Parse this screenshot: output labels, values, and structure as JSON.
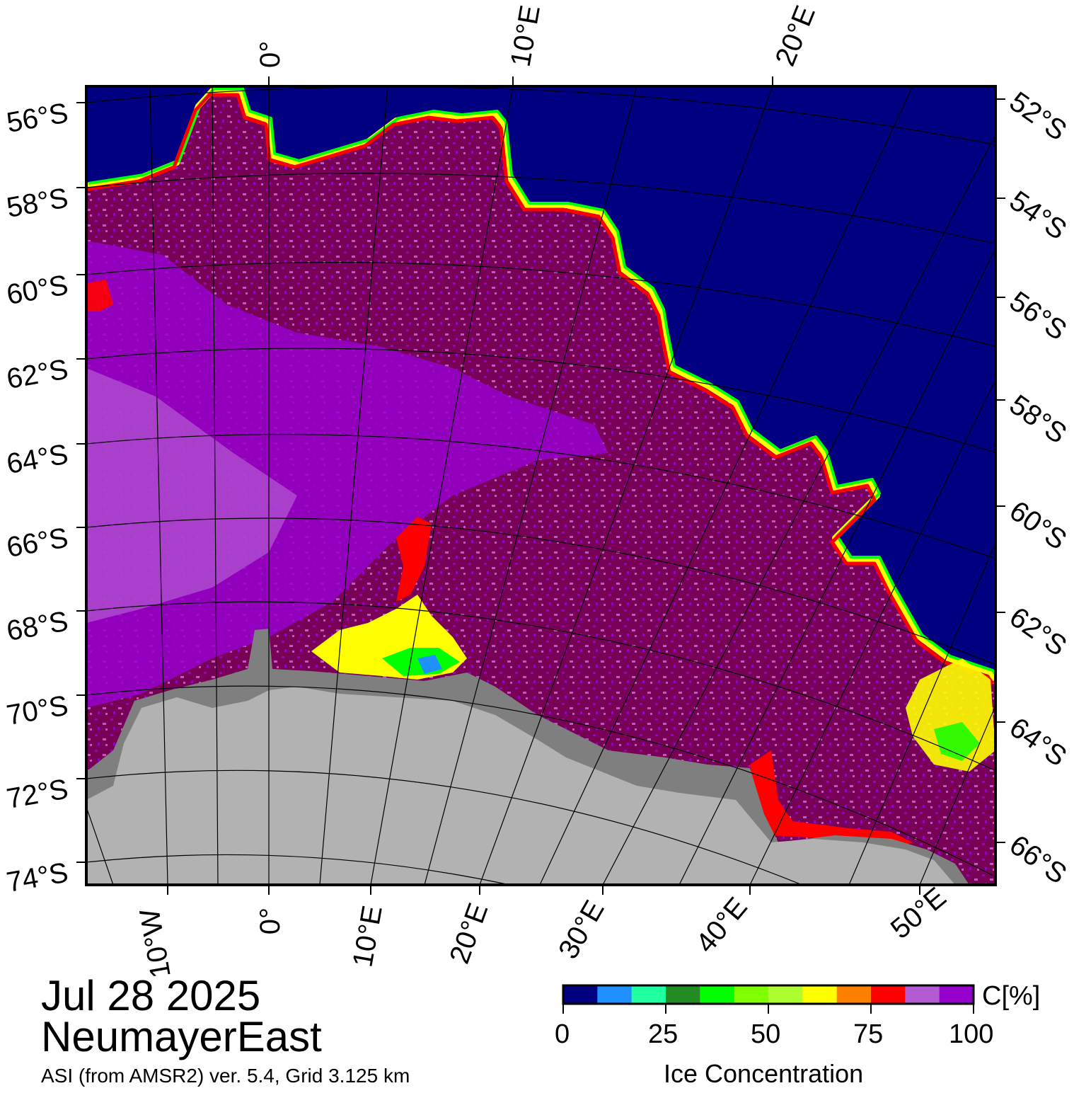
{
  "map": {
    "latitude_labels_left": [
      "56°S",
      "58°S",
      "60°S",
      "62°S",
      "64°S",
      "66°S",
      "68°S",
      "70°S",
      "72°S",
      "74°S"
    ],
    "latitude_labels_right": [
      "52°S",
      "54°S",
      "56°S",
      "58°S",
      "60°S",
      "62°S",
      "64°S",
      "66°S"
    ],
    "longitude_labels_top": [
      "0°",
      "10°E",
      "20°E"
    ],
    "longitude_labels_bottom": [
      "10°W",
      "0°",
      "10°E",
      "20°E",
      "30°E",
      "40°E",
      "50°E"
    ],
    "colors": {
      "open_water": "#000080",
      "land": "#b2b2b2",
      "ice_shelf": "#7f7f7f",
      "ice_100": "#780057",
      "ice_95": "#9600cd",
      "ice_90": "#b45ad2",
      "ice_85": "#ff0000",
      "ice_75": "#ffff00",
      "ice_50": "#00ff00"
    }
  },
  "title": {
    "date": "Jul 28 2025",
    "region": "NeumayerEast",
    "product": "ASI (from AMSR2) ver. 5.4,  Grid 3.125 km"
  },
  "colorbar": {
    "unit_label": "C[%]",
    "title": "Ice Concentration",
    "ticks": [
      "0",
      "25",
      "50",
      "75",
      "100"
    ],
    "colors": [
      "#000080",
      "#1e90ff",
      "#1effa0",
      "#228b22",
      "#00ff00",
      "#7fff00",
      "#adff2f",
      "#ffff00",
      "#ff7f00",
      "#ff0000",
      "#b45ad2",
      "#9600cd"
    ]
  }
}
